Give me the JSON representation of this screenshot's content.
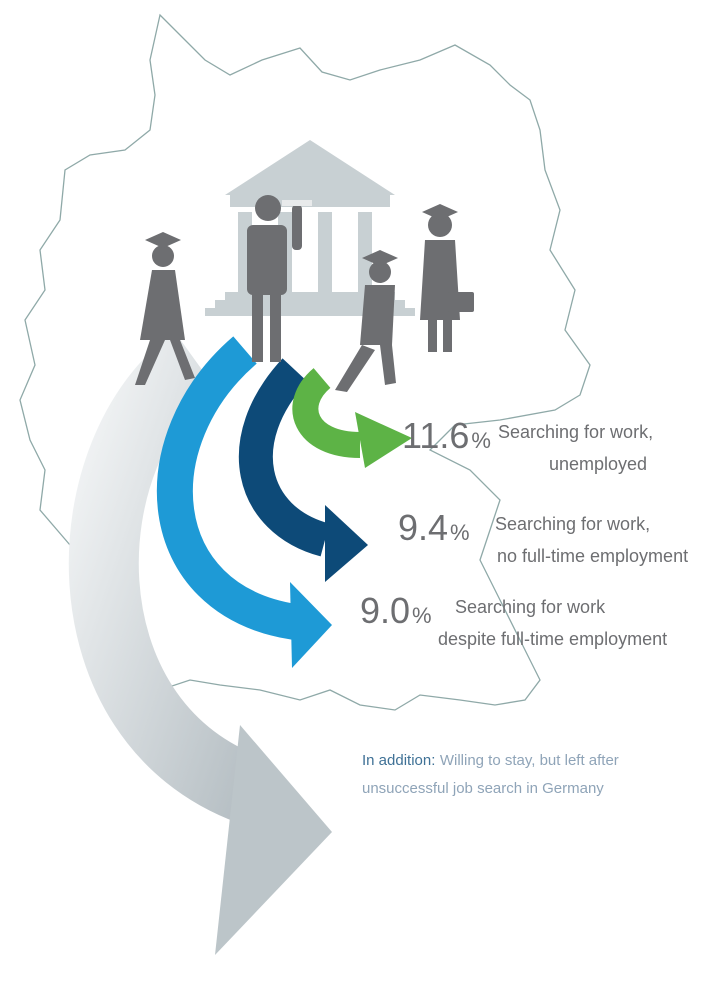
{
  "stats": [
    {
      "value": "11.6",
      "unit": "%",
      "lines": [
        "Searching for work,",
        "unemployed"
      ]
    },
    {
      "value": "9.4",
      "unit": "%",
      "lines": [
        "Searching for work,",
        "no full-time employment"
      ]
    },
    {
      "value": "9.0",
      "unit": "%",
      "lines": [
        "Searching for work",
        "despite full-time employment"
      ]
    }
  ],
  "note": {
    "head": "In addition:",
    "lines": [
      "Willing to stay, but left after",
      "unsuccessful job search in Germany"
    ]
  }
}
